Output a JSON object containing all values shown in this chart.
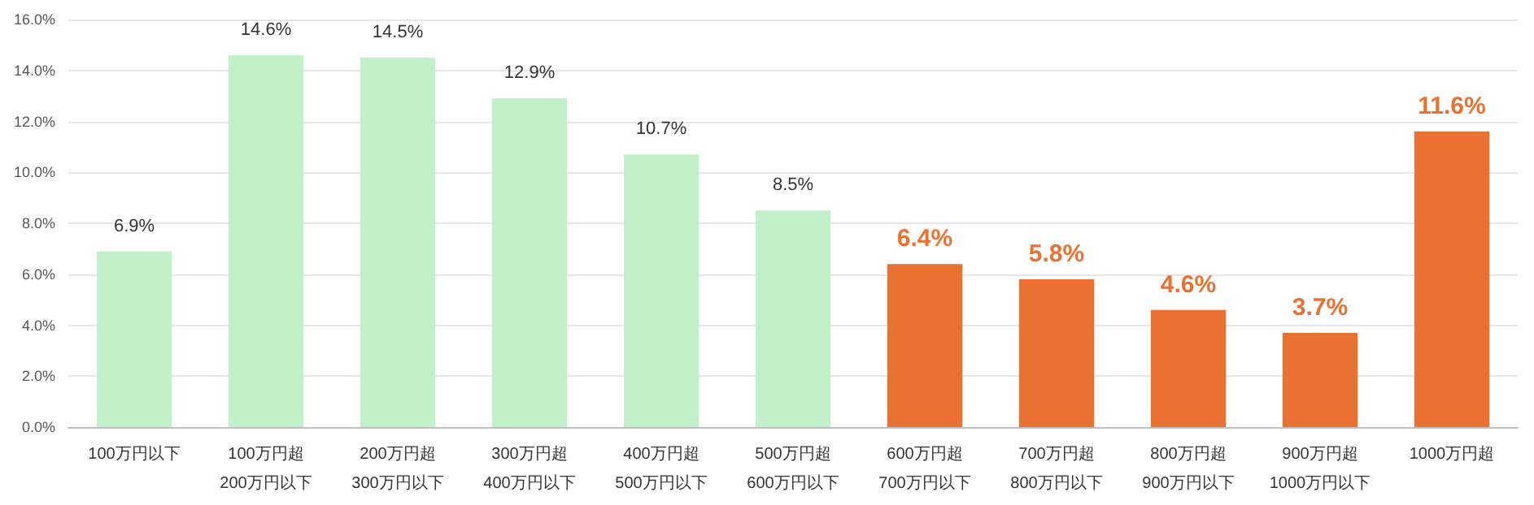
{
  "chart_data": {
    "type": "bar",
    "categories": [
      "100万円以下",
      "100万円超\n200万円以下",
      "200万円超\n300万円以下",
      "300万円超\n400万円以下",
      "400万円超\n500万円以下",
      "500万円超\n600万円以下",
      "600万円超\n700万円以下",
      "700万円超\n800万円以下",
      "800万円超\n900万円以下",
      "900万円超\n1000万円以下",
      "1000万円超"
    ],
    "values": [
      6.9,
      14.6,
      14.5,
      12.9,
      10.7,
      8.5,
      6.4,
      5.8,
      4.6,
      3.7,
      11.6
    ],
    "colors": [
      "#c2f0c8",
      "#c2f0c8",
      "#c2f0c8",
      "#c2f0c8",
      "#c2f0c8",
      "#c2f0c8",
      "#e97132",
      "#e97132",
      "#e97132",
      "#e97132",
      "#e97132"
    ],
    "value_labels": [
      "6.9%",
      "14.6%",
      "14.5%",
      "12.9%",
      "10.7%",
      "8.5%",
      "6.4%",
      "5.8%",
      "4.6%",
      "3.7%",
      "11.6%"
    ],
    "ylim": [
      0,
      16
    ],
    "yticks": [
      {
        "value": 0,
        "label": "0.0%"
      },
      {
        "value": 2,
        "label": "2.0%"
      },
      {
        "value": 4,
        "label": "4.0%"
      },
      {
        "value": 6,
        "label": "6.0%"
      },
      {
        "value": 8,
        "label": "8.0%"
      },
      {
        "value": 10,
        "label": "10.0%"
      },
      {
        "value": 12,
        "label": "12.0%"
      },
      {
        "value": 14,
        "label": "14.0%"
      },
      {
        "value": 16,
        "label": "16.0%"
      }
    ],
    "grid": "y"
  }
}
